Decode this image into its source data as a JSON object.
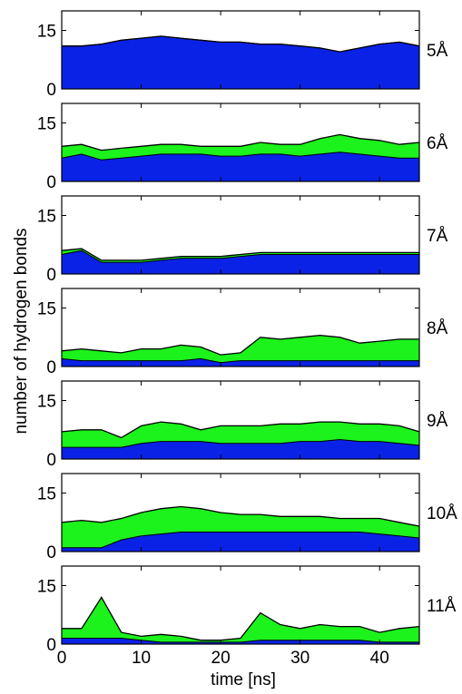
{
  "figure": {
    "ylabel": "number of hydrogen bonds",
    "xlabel": "time [ns]",
    "x_ticks": [
      "0",
      "10",
      "20",
      "30",
      "40"
    ],
    "y_ticks": [
      "0",
      "15"
    ]
  },
  "chart_data": {
    "type": "area",
    "xlabel": "time [ns]",
    "ylabel": "number of hydrogen bonds",
    "xlim": [
      0,
      45
    ],
    "ylim": [
      0,
      20
    ],
    "x_ticks": [
      0,
      10,
      20,
      30,
      40
    ],
    "y_ticks": [
      0,
      15
    ],
    "grid": false,
    "colors": {
      "blue": "#0a22e6",
      "green": "#1cf21c",
      "outline": "#000000"
    },
    "x": [
      0,
      2.5,
      5,
      7.5,
      10,
      12.5,
      15,
      17.5,
      20,
      22.5,
      25,
      27.5,
      30,
      32.5,
      35,
      37.5,
      40,
      42.5,
      45
    ],
    "panels": [
      {
        "label": "5Å",
        "blue": [
          11,
          11,
          11.5,
          12.5,
          13,
          13.5,
          13,
          12.5,
          12,
          12,
          11.5,
          11.5,
          11,
          10.5,
          9.5,
          10.5,
          11.5,
          12,
          11
        ],
        "total": [
          11,
          11,
          11.5,
          12.5,
          13,
          13.5,
          13,
          12.5,
          12,
          12,
          11.5,
          11.5,
          11,
          10.5,
          9.5,
          10.5,
          11.5,
          12,
          11
        ]
      },
      {
        "label": "6Å",
        "blue": [
          6,
          7,
          5.5,
          6,
          6.5,
          7,
          7,
          7,
          6.5,
          6.5,
          7,
          7,
          6.5,
          7,
          7.5,
          7,
          6.5,
          6,
          6
        ],
        "total": [
          9,
          9.5,
          8,
          8.5,
          9,
          9.5,
          9.5,
          9,
          9,
          9,
          10,
          9.5,
          9.5,
          11,
          12,
          11,
          10.5,
          9.5,
          10
        ]
      },
      {
        "label": "7Å",
        "blue": [
          5,
          6,
          3,
          3,
          3,
          3.5,
          4,
          4,
          4,
          4.5,
          5,
          5,
          5,
          5,
          5,
          5,
          5,
          5,
          5
        ],
        "total": [
          6,
          6.5,
          3.5,
          3.5,
          3.5,
          4,
          4.5,
          4.5,
          4.5,
          5,
          5.5,
          5.5,
          5.5,
          5.5,
          5.5,
          5.5,
          5.5,
          5.5,
          5.5
        ]
      },
      {
        "label": "8Å",
        "blue": [
          2,
          1.5,
          1.5,
          1.5,
          1.5,
          1.5,
          1.5,
          2,
          1,
          1.5,
          1.5,
          1.5,
          1.5,
          1.5,
          1.5,
          1.5,
          1.5,
          1.5,
          1.5
        ],
        "total": [
          4,
          4.5,
          4,
          3.5,
          4.5,
          4.5,
          5.5,
          5,
          3,
          3.5,
          7.5,
          7,
          7.5,
          8,
          7.5,
          6,
          6.5,
          7,
          7
        ]
      },
      {
        "label": "9Å",
        "blue": [
          3,
          3,
          3,
          3,
          4,
          4.5,
          4.5,
          4.5,
          4,
          4,
          4,
          4,
          4.5,
          4.5,
          5,
          4.5,
          4.5,
          4,
          3.5
        ],
        "total": [
          7,
          7.5,
          7.5,
          5.5,
          8.5,
          9.5,
          9,
          7.5,
          8.5,
          8.5,
          8.5,
          9,
          9,
          9.5,
          9.5,
          9,
          9,
          8.5,
          7
        ]
      },
      {
        "label": "10Å",
        "blue": [
          1,
          1,
          1,
          3,
          4,
          4.5,
          5,
          5,
          5,
          5,
          5,
          5,
          5,
          5,
          5,
          5,
          4.5,
          4,
          3.5
        ],
        "total": [
          7.5,
          8,
          7.5,
          8.5,
          10,
          11,
          11.5,
          11,
          10,
          9.5,
          9.5,
          9,
          9,
          9,
          8.5,
          8.5,
          8.5,
          7.5,
          6.5
        ]
      },
      {
        "label": "11Å",
        "blue": [
          1.5,
          1.5,
          1.5,
          1.5,
          1,
          0.5,
          0.5,
          0.5,
          0.5,
          0.5,
          1,
          1,
          1,
          1,
          1,
          1,
          0.5,
          0.5,
          0.5
        ],
        "total": [
          4,
          4,
          12,
          3,
          2,
          2.5,
          2,
          1,
          1,
          1.5,
          8,
          5,
          4,
          5,
          4.5,
          4.5,
          3,
          4,
          4.5
        ]
      }
    ]
  }
}
